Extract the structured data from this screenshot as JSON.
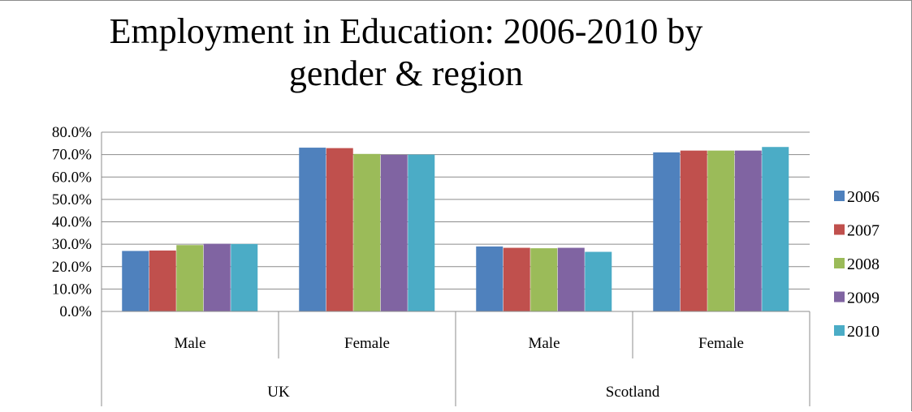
{
  "chart_data": {
    "type": "bar",
    "title_lines": [
      "Employment in Education: 2006-2010 by",
      "gender & region"
    ],
    "groups": [
      {
        "label": "UK",
        "categories": [
          "Male",
          "Female"
        ]
      },
      {
        "label": "Scotland",
        "categories": [
          "Male",
          "Female"
        ]
      }
    ],
    "series": [
      {
        "name": "2006",
        "color": "#4f81bd",
        "values": [
          0.27,
          0.731,
          0.29,
          0.71
        ]
      },
      {
        "name": "2007",
        "color": "#c0504d",
        "values": [
          0.272,
          0.729,
          0.284,
          0.718
        ]
      },
      {
        "name": "2008",
        "color": "#9bbb59",
        "values": [
          0.296,
          0.703,
          0.282,
          0.718
        ]
      },
      {
        "name": "2009",
        "color": "#8064a2",
        "values": [
          0.302,
          0.699,
          0.284,
          0.718
        ]
      },
      {
        "name": "2010",
        "color": "#4bacc6",
        "values": [
          0.301,
          0.7,
          0.266,
          0.734
        ]
      }
    ],
    "yticks": [
      "0.0%",
      "10.0%",
      "20.0%",
      "30.0%",
      "40.0%",
      "50.0%",
      "60.0%",
      "70.0%",
      "80.0%"
    ],
    "ylim": [
      0,
      0.8
    ],
    "grid": true,
    "legend_position": "right"
  }
}
